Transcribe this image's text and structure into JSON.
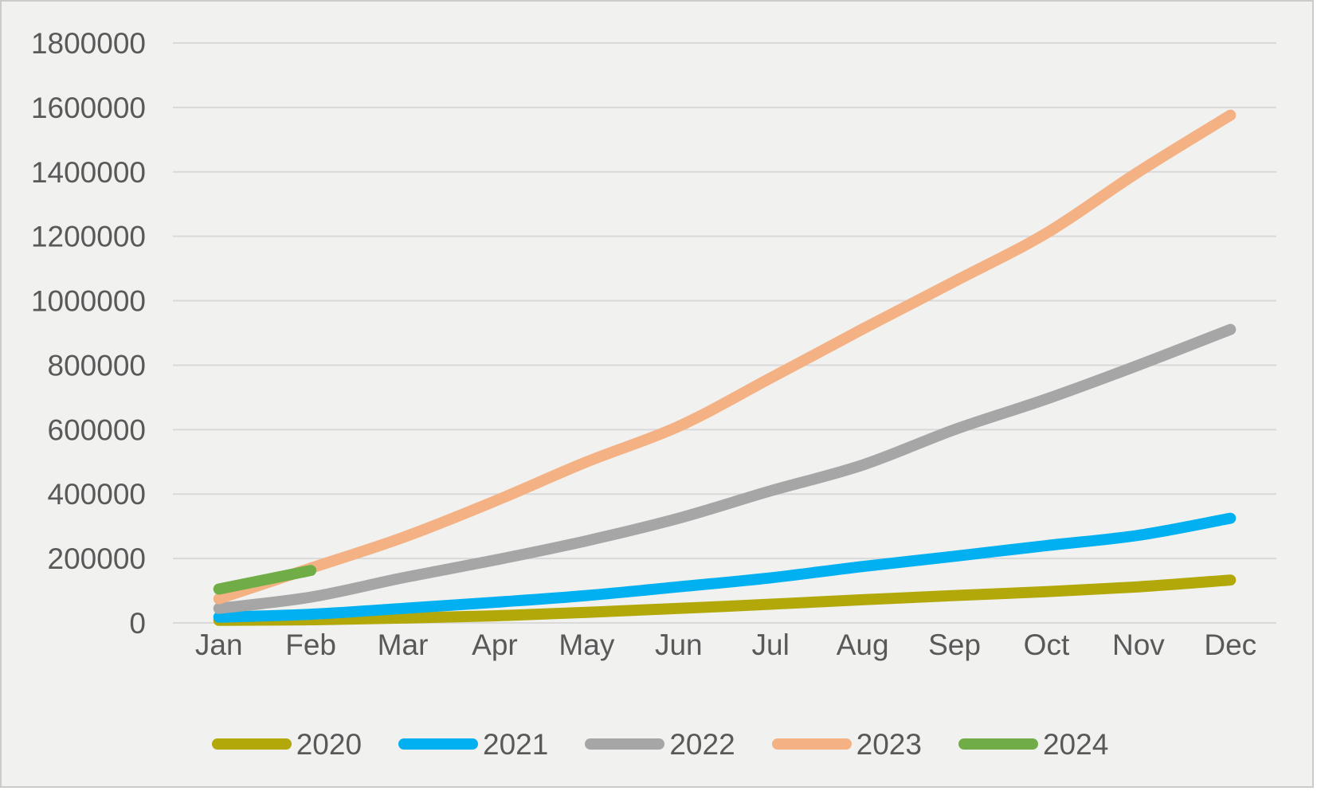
{
  "frame": {
    "background": "#f1f1f0",
    "border_color": "#cccbca",
    "grid_color": "#d9d9d9",
    "axis_text_color": "#595959"
  },
  "chart_data": {
    "type": "line",
    "title": "",
    "subtitle": "",
    "xlabel": "",
    "ylabel": "",
    "line_style": "smooth",
    "grid": true,
    "legend_position": "bottom",
    "ylim": [
      0,
      1800000
    ],
    "y_tick_step": 200000,
    "y_ticks": [
      "0",
      "200000",
      "400000",
      "600000",
      "800000",
      "1000000",
      "1200000",
      "1400000",
      "1600000",
      "1800000"
    ],
    "categories": [
      "Jan",
      "Feb",
      "Mar",
      "Apr",
      "May",
      "Jun",
      "Jul",
      "Aug",
      "Sep",
      "Oct",
      "Nov",
      "Dec"
    ],
    "series": [
      {
        "name": "2020",
        "color": "#b2a80a",
        "values": [
          8000,
          10000,
          15000,
          22000,
          33000,
          45000,
          58000,
          72000,
          85000,
          97000,
          112000,
          133000
        ]
      },
      {
        "name": "2021",
        "color": "#00b0f0",
        "values": [
          18000,
          27000,
          45000,
          64000,
          85000,
          112000,
          140000,
          175000,
          207000,
          240000,
          272000,
          325000
        ]
      },
      {
        "name": "2022",
        "color": "#a6a6a6",
        "values": [
          45000,
          80000,
          140000,
          195000,
          255000,
          325000,
          410000,
          490000,
          600000,
          695000,
          800000,
          911000
        ]
      },
      {
        "name": "2023",
        "color": "#f4b183",
        "values": [
          75000,
          170000,
          265000,
          378000,
          500000,
          610000,
          760000,
          912000,
          1060000,
          1210000,
          1400000,
          1576000
        ]
      },
      {
        "name": "2024",
        "color": "#70ad47",
        "values": [
          105000,
          163000
        ]
      }
    ]
  }
}
